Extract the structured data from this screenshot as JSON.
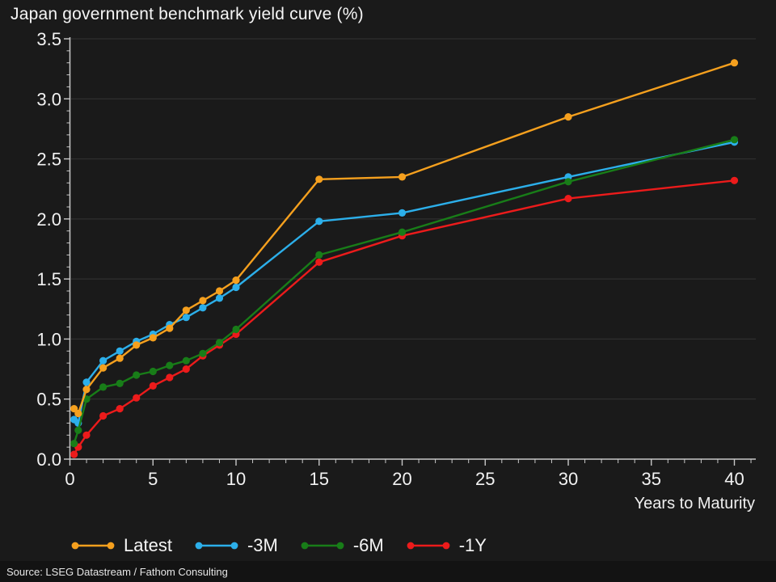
{
  "title": "Japan government benchmark yield curve (%)",
  "source": "Source: LSEG Datastream / Fathom Consulting",
  "colors": {
    "background": "#1a1a1a",
    "source_bar": "#131313",
    "grid": "#343434",
    "axis": "#c8c8c8",
    "text": "#f2f2f2"
  },
  "chart_data": {
    "type": "line",
    "title": "Japan government benchmark yield curve (%)",
    "xlabel": "Years to Maturity",
    "ylabel": "",
    "xlim": [
      0,
      41.3
    ],
    "ylim": [
      0,
      3.5
    ],
    "grid": "horizontal",
    "legend_position": "bottom",
    "x_tick_values": [
      0,
      5,
      10,
      15,
      20,
      25,
      30,
      35,
      40
    ],
    "x_tick_labels": [
      "0",
      "5",
      "10",
      "15",
      "20",
      "25",
      "30",
      "35",
      "40"
    ],
    "y_tick_values": [
      0,
      0.5,
      1.0,
      1.5,
      2.0,
      2.5,
      3.0,
      3.5
    ],
    "y_tick_labels": [
      "0.0",
      "0.5",
      "1.0",
      "1.5",
      "2.0",
      "2.5",
      "3.0",
      "3.5"
    ],
    "x": [
      0.25,
      0.5,
      1,
      2,
      3,
      4,
      5,
      6,
      7,
      8,
      9,
      10,
      15,
      20,
      30,
      40
    ],
    "series": [
      {
        "name": "Latest",
        "color": "#f5a01e",
        "values": [
          0.42,
          0.38,
          0.58,
          0.76,
          0.84,
          0.95,
          1.01,
          1.09,
          1.24,
          1.32,
          1.4,
          1.49,
          2.33,
          2.35,
          2.85,
          3.3
        ]
      },
      {
        "name": "-3M",
        "color": "#2cafea",
        "values": [
          0.33,
          0.3,
          0.64,
          0.82,
          0.9,
          0.98,
          1.04,
          1.12,
          1.18,
          1.26,
          1.34,
          1.43,
          1.98,
          2.05,
          2.35,
          2.64
        ]
      },
      {
        "name": "-6M",
        "color": "#187d18",
        "values": [
          0.13,
          0.24,
          0.5,
          0.6,
          0.63,
          0.7,
          0.73,
          0.78,
          0.82,
          0.88,
          0.97,
          1.08,
          1.7,
          1.89,
          2.31,
          2.66
        ]
      },
      {
        "name": "-1Y",
        "color": "#ec1b1b",
        "values": [
          0.04,
          0.1,
          0.2,
          0.36,
          0.42,
          0.51,
          0.61,
          0.68,
          0.75,
          0.86,
          0.95,
          1.04,
          1.64,
          1.86,
          2.17,
          2.32
        ]
      }
    ]
  }
}
